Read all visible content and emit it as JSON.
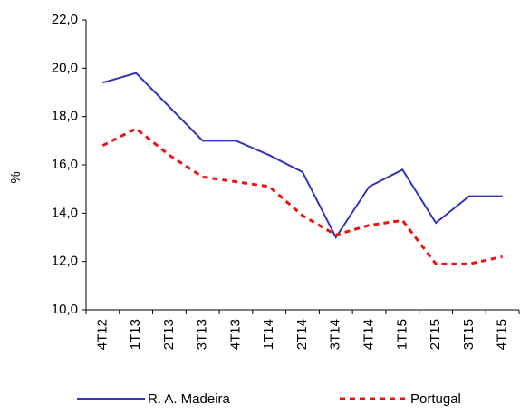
{
  "chart_data": {
    "type": "line",
    "y_label": "%",
    "categories": [
      "4T12",
      "1T13",
      "2T13",
      "3T13",
      "4T13",
      "1T14",
      "2T14",
      "3T14",
      "4T14",
      "1T15",
      "2T15",
      "3T15",
      "4T15"
    ],
    "series": [
      {
        "name": "R. A. Madeira",
        "color": "#3333bb",
        "dash": false,
        "values": [
          19.4,
          19.8,
          18.4,
          17.0,
          17.0,
          16.4,
          15.7,
          13.0,
          15.1,
          15.8,
          13.6,
          14.7,
          14.7
        ]
      },
      {
        "name": "Portugal",
        "color": "#ee1111",
        "dash": true,
        "values": [
          16.8,
          17.5,
          16.4,
          15.5,
          15.3,
          15.1,
          13.9,
          13.1,
          13.5,
          13.7,
          11.9,
          11.9,
          12.2
        ]
      }
    ],
    "ylim": [
      10,
      22
    ],
    "yticks": [
      {
        "value": 10,
        "label": "10,0"
      },
      {
        "value": 12,
        "label": "12,0"
      },
      {
        "value": 14,
        "label": "14,0"
      },
      {
        "value": 16,
        "label": "16,0"
      },
      {
        "value": 18,
        "label": "18,0"
      },
      {
        "value": 20,
        "label": "20,0"
      },
      {
        "value": 22,
        "label": "22,0"
      }
    ],
    "grid": false
  }
}
